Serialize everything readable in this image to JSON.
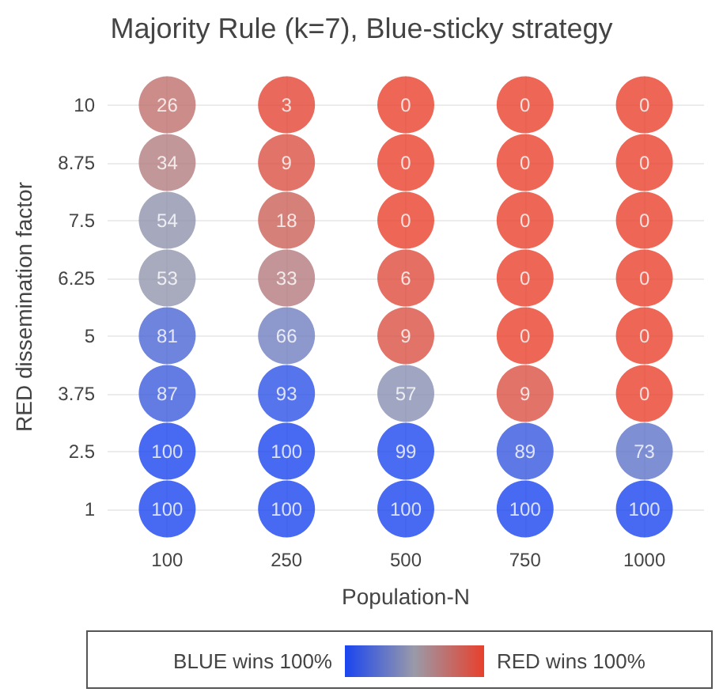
{
  "chart_data": {
    "type": "heatmap",
    "title": "Majority Rule (k=7), Blue-sticky strategy",
    "xlabel": "Population-N",
    "ylabel": "RED dissemination factor",
    "categories": [
      "100",
      "250",
      "500",
      "750",
      "1000"
    ],
    "y_categories": [
      "10",
      "8.75",
      "7.5",
      "6.25",
      "5",
      "3.75",
      "2.5",
      "1"
    ],
    "cells": [
      [
        26,
        3,
        0,
        0,
        0
      ],
      [
        34,
        9,
        0,
        0,
        0
      ],
      [
        54,
        18,
        0,
        0,
        0
      ],
      [
        53,
        33,
        6,
        0,
        0
      ],
      [
        81,
        66,
        9,
        0,
        0
      ],
      [
        87,
        93,
        57,
        9,
        0
      ],
      [
        100,
        100,
        99,
        89,
        73
      ],
      [
        100,
        100,
        100,
        100,
        100
      ]
    ],
    "annotations": [
      "BLUE wins 100%",
      "RED wins 100%"
    ],
    "marker": "circle",
    "data_labels": true,
    "grid": true
  }
}
